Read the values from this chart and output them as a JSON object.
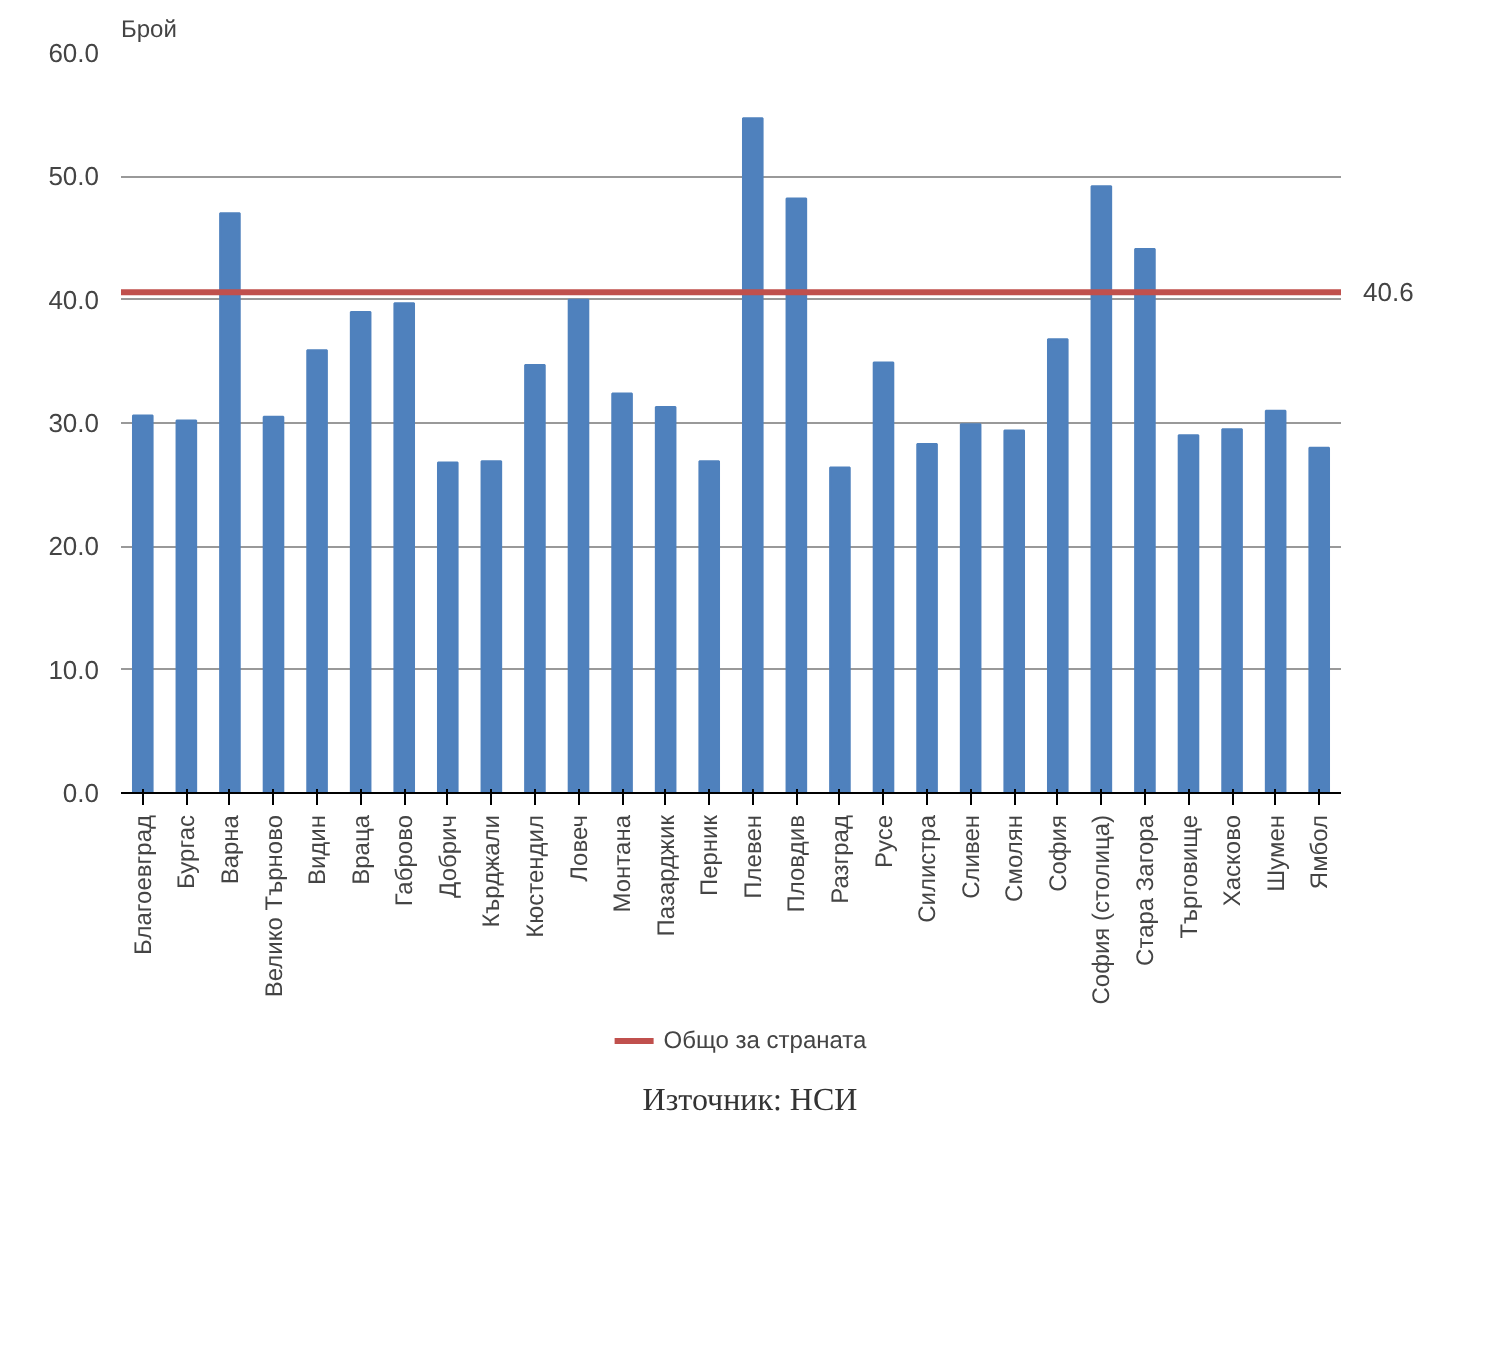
{
  "chart_data": {
    "type": "bar",
    "ylabel": "Брой",
    "categories": [
      "Благоевград",
      "Бургас",
      "Варна",
      "Велико Търново",
      "Видин",
      "Враца",
      "Габрово",
      "Добрич",
      "Кърджали",
      "Кюстендил",
      "Ловеч",
      "Монтана",
      "Пазарджик",
      "Перник",
      "Плевен",
      "Пловдив",
      "Разград",
      "Русе",
      "Силистра",
      "Сливен",
      "Смолян",
      "София",
      "София (столица)",
      "Стара Загора",
      "Търговище",
      "Хасково",
      "Шумен",
      "Ямбол"
    ],
    "values": [
      30.6,
      30.2,
      47.0,
      30.5,
      35.9,
      39.0,
      39.7,
      26.8,
      26.9,
      34.7,
      40.0,
      32.4,
      31.3,
      26.9,
      54.7,
      48.2,
      26.4,
      34.9,
      28.3,
      29.9,
      29.4,
      36.8,
      49.2,
      44.1,
      29.0,
      29.5,
      31.0,
      28.0
    ],
    "color": "#4f81bd",
    "ylim": [
      0,
      60
    ],
    "yticks": [
      {
        "value": 0,
        "label": "0.0"
      },
      {
        "value": 10,
        "label": "10.0"
      },
      {
        "value": 20,
        "label": "20.0"
      },
      {
        "value": 30,
        "label": "30.0"
      },
      {
        "value": 40,
        "label": "40.0"
      },
      {
        "value": 50,
        "label": "50.0"
      },
      {
        "value": 60,
        "label": "60.0"
      }
    ],
    "grid": "y",
    "ref_lines": [
      {
        "axis": "y",
        "value": 40.6,
        "label": "Общо за страната",
        "color": "#c0504d"
      }
    ],
    "legend": "bottom",
    "annotations": [
      "40.6",
      "Източник: НСИ"
    ]
  }
}
